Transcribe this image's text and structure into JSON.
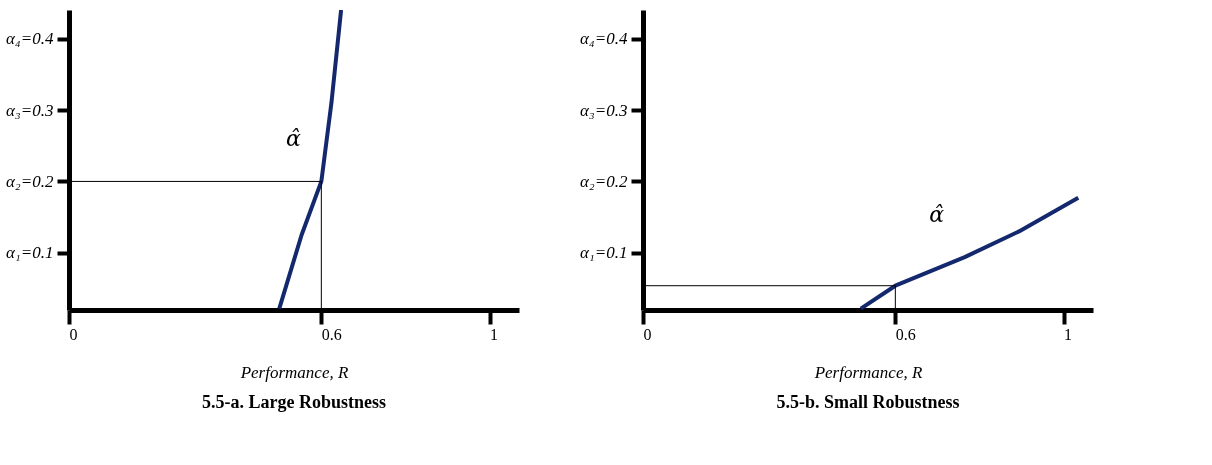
{
  "chart_data": [
    {
      "type": "line",
      "title": "5.5-a. Large Robustness",
      "xlabel": "Performance, R",
      "xlim": [
        0,
        1.07
      ],
      "ylim": [
        0.02,
        0.44
      ],
      "xticks": [
        0,
        0.6,
        1
      ],
      "yticks": [
        {
          "value": 0.1,
          "label": "α₁=0.1"
        },
        {
          "value": 0.2,
          "label": "α₂=0.2"
        },
        {
          "value": 0.3,
          "label": "α₃=0.3"
        },
        {
          "value": 0.4,
          "label": "α₄=0.4"
        }
      ],
      "grid": false,
      "series": [
        {
          "color": "#14286e",
          "x": [
            0.5,
            0.553,
            0.6,
            0.624,
            0.647
          ],
          "values": [
            0.022,
            0.125,
            0.2,
            0.31,
            0.44
          ]
        },
        {
          "color": "#000000",
          "x": [
            0,
            0.6,
            0.6
          ],
          "values": [
            0.2,
            0.2,
            0.022
          ]
        }
      ],
      "annotations": [
        "α̂"
      ]
    },
    {
      "type": "line",
      "title": "5.5-b. Small Robustness",
      "xlabel": "Performance, R",
      "xlim": [
        0,
        1.07
      ],
      "ylim": [
        0.02,
        0.44
      ],
      "xticks": [
        0,
        0.6,
        1
      ],
      "yticks": [
        {
          "value": 0.1,
          "label": "α₁=0.1"
        },
        {
          "value": 0.2,
          "label": "α₂=0.2"
        },
        {
          "value": 0.3,
          "label": "α₃=0.3"
        },
        {
          "value": 0.4,
          "label": "α₄=0.4"
        }
      ],
      "grid": false,
      "series": [
        {
          "color": "#14286e",
          "x": [
            0.518,
            0.6,
            0.765,
            0.894,
            1.035
          ],
          "values": [
            0.022,
            0.054,
            0.094,
            0.13,
            0.177
          ]
        },
        {
          "color": "#000000",
          "x": [
            0,
            0.6,
            0.6
          ],
          "values": [
            0.054,
            0.054,
            0.022
          ]
        }
      ],
      "annotations": [
        "α̂"
      ]
    }
  ]
}
